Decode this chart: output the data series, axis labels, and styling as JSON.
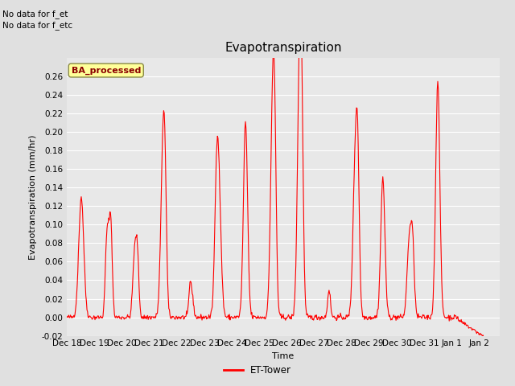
{
  "title": "Evapotranspiration",
  "ylabel": "Evapotranspiration (mm/hr)",
  "xlabel": "Time",
  "ylim": [
    -0.02,
    0.28
  ],
  "line_color": "#FF0000",
  "line_width": 0.8,
  "bg_color": "#E0E0E0",
  "plot_bg_color": "#E8E8E8",
  "legend_label": "ET-Tower",
  "legend_box_color": "#FFFF99",
  "legend_edge_color": "#888844",
  "watermark_text": "BA_processed",
  "note_text1": "No data for f_et",
  "note_text2": "No data for f_etc",
  "title_fontsize": 11,
  "label_fontsize": 8,
  "tick_fontsize": 7.5
}
